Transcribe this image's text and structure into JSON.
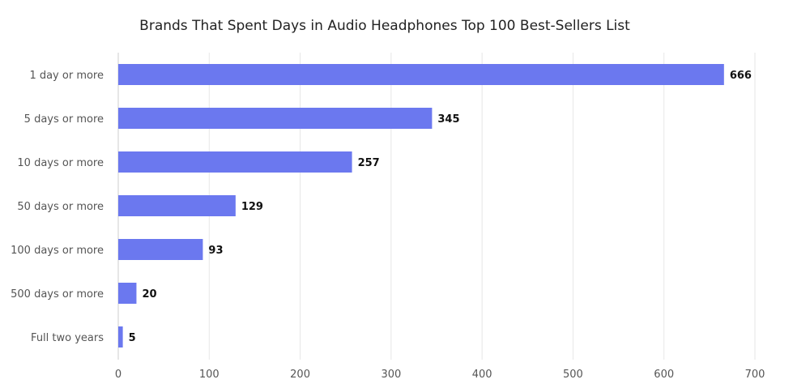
{
  "chart_data": {
    "type": "bar",
    "orientation": "horizontal",
    "title": "Brands That Spent Days in Audio Headphones Top 100 Best-Sellers List",
    "categories": [
      "1 day or more",
      "5 days or more",
      "10 days or more",
      "50 days or more",
      "100 days or more",
      "500 days or more",
      "Full two years"
    ],
    "values": [
      666,
      345,
      257,
      129,
      93,
      20,
      5
    ],
    "xlim": [
      0,
      700
    ],
    "x_ticks": [
      0,
      100,
      200,
      300,
      400,
      500,
      600,
      700
    ],
    "grid": true,
    "legend": "none",
    "bar_color": "#6b78ef"
  }
}
